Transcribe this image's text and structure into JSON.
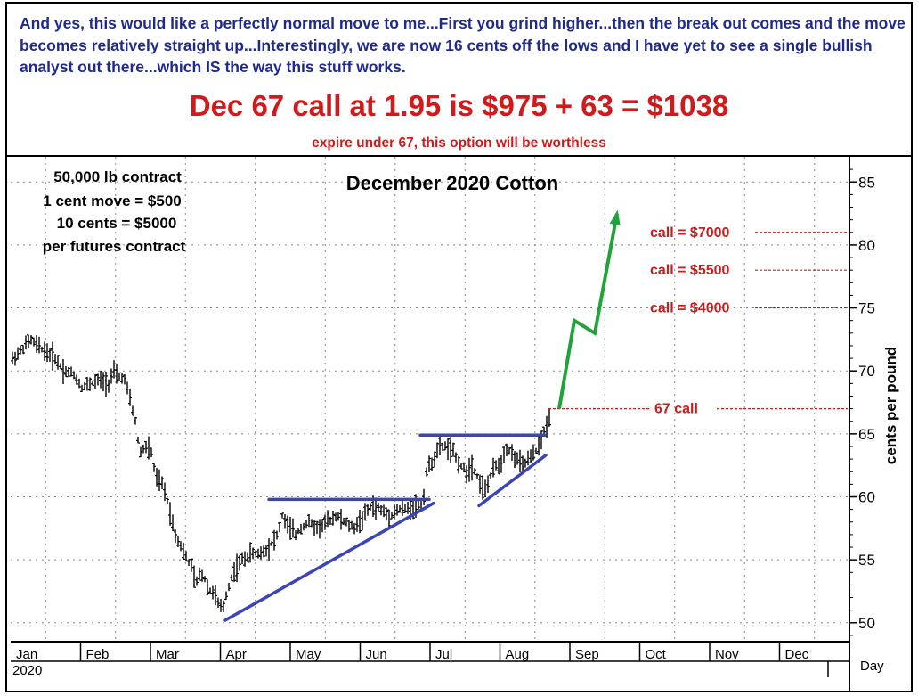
{
  "header": {
    "commentary": "And yes, this would like a perfectly normal move to me...First you grind higher...then the break out comes and the move becomes relatively straight up...Interestingly, we are now 16 cents off the lows and I have yet to see a single bullish analyst out there...which IS the way this stuff works.",
    "headline": "Dec 67 call at 1.95 is $975 + 63 = $1038",
    "subline": "expire under 67, this option will be worthless"
  },
  "contract_notes": [
    "50,000 lb contract",
    "1 cent move = $500",
    "10 cents = $5000",
    "per futures contract"
  ],
  "colors": {
    "trendline": "#3b45b8",
    "projection": "#1fa33a",
    "call_text": "#c81e1e",
    "commentary": "#1f2a8c",
    "headline": "#d11b1b"
  },
  "chart_data": {
    "type": "ohlc",
    "title": "December 2020 Cotton",
    "ylabel": "cents per pound",
    "xlabel": "Day",
    "year_label": "2020",
    "ylim": [
      48.5,
      87
    ],
    "yticks": [
      50,
      55,
      60,
      65,
      70,
      75,
      80,
      85
    ],
    "months": [
      "Jan",
      "Feb",
      "Mar",
      "Apr",
      "May",
      "Jun",
      "Jul",
      "Aug",
      "Sep",
      "Oct",
      "Nov",
      "Dec"
    ],
    "grid": true,
    "price_path": [
      [
        0,
        70.8
      ],
      [
        10,
        71.5
      ],
      [
        22,
        72.5
      ],
      [
        30,
        72.0
      ],
      [
        40,
        71.5
      ],
      [
        50,
        71.0
      ],
      [
        60,
        70.0
      ],
      [
        70,
        69.8
      ],
      [
        80,
        68.7
      ],
      [
        90,
        69.0
      ],
      [
        100,
        69.3
      ],
      [
        110,
        69.0
      ],
      [
        115,
        70.0
      ],
      [
        120,
        69.5
      ],
      [
        127,
        69.5
      ],
      [
        133,
        68.0
      ],
      [
        140,
        66.0
      ],
      [
        145,
        63.5
      ],
      [
        152,
        64.0
      ],
      [
        158,
        63.5
      ],
      [
        163,
        61.5
      ],
      [
        170,
        61.0
      ],
      [
        175,
        60.0
      ],
      [
        180,
        58.5
      ],
      [
        185,
        57.0
      ],
      [
        192,
        56.0
      ],
      [
        198,
        55.0
      ],
      [
        203,
        54.5
      ],
      [
        208,
        53.0
      ],
      [
        213,
        54.0
      ],
      [
        218,
        53.5
      ],
      [
        223,
        52.5
      ],
      [
        228,
        52.5
      ],
      [
        233,
        51.5
      ],
      [
        238,
        51.0
      ],
      [
        243,
        52.5
      ],
      [
        250,
        54.0
      ],
      [
        260,
        55.0
      ],
      [
        270,
        55.5
      ],
      [
        280,
        55.5
      ],
      [
        290,
        56.0
      ],
      [
        300,
        57.0
      ],
      [
        305,
        58.5
      ],
      [
        310,
        57.8
      ],
      [
        320,
        57.0
      ],
      [
        325,
        57.5
      ],
      [
        335,
        58.0
      ],
      [
        345,
        57.5
      ],
      [
        355,
        58.0
      ],
      [
        365,
        58.5
      ],
      [
        375,
        58.0
      ],
      [
        385,
        57.5
      ],
      [
        395,
        58.3
      ],
      [
        405,
        59.3
      ],
      [
        415,
        59.0
      ],
      [
        425,
        58.5
      ],
      [
        435,
        59.0
      ],
      [
        445,
        59.0
      ],
      [
        455,
        59.3
      ],
      [
        463,
        59.5
      ],
      [
        467,
        62.0
      ],
      [
        475,
        63.0
      ],
      [
        482,
        64.0
      ],
      [
        490,
        64.0
      ],
      [
        497,
        63.5
      ],
      [
        505,
        62.5
      ],
      [
        512,
        62.0
      ],
      [
        518,
        62.5
      ],
      [
        522,
        62.0
      ],
      [
        528,
        61.0
      ],
      [
        533,
        60.5
      ],
      [
        538,
        61.5
      ],
      [
        545,
        62.5
      ],
      [
        550,
        62.5
      ],
      [
        556,
        64.0
      ],
      [
        562,
        63.5
      ],
      [
        568,
        63.0
      ],
      [
        575,
        62.5
      ],
      [
        582,
        63.0
      ],
      [
        589,
        63.5
      ],
      [
        596,
        64.5
      ],
      [
        601,
        65.5
      ],
      [
        606,
        66.5
      ]
    ],
    "trendlines": [
      {
        "label": "lower support",
        "points": [
          [
            241,
            50.2
          ],
          [
            475,
            59.5
          ]
        ]
      },
      {
        "label": "resistance",
        "points": [
          [
            290,
            59.8
          ],
          [
            470,
            59.8
          ]
        ]
      },
      {
        "label": "lower support",
        "points": [
          [
            526,
            59.3
          ],
          [
            601,
            63.3
          ]
        ]
      },
      {
        "label": "resistance",
        "points": [
          [
            460,
            64.9
          ],
          [
            600,
            64.9
          ]
        ]
      }
    ],
    "projection": [
      [
        616,
        67.0
      ],
      [
        633,
        74.0
      ],
      [
        656,
        73.0
      ],
      [
        681,
        82.5
      ]
    ],
    "call_levels": [
      {
        "label": "call = $7000",
        "value": 81
      },
      {
        "label": "call = $5500",
        "value": 78
      },
      {
        "label": "call = $4000",
        "value": 75
      },
      {
        "label": "67 call",
        "value": 67
      }
    ]
  }
}
